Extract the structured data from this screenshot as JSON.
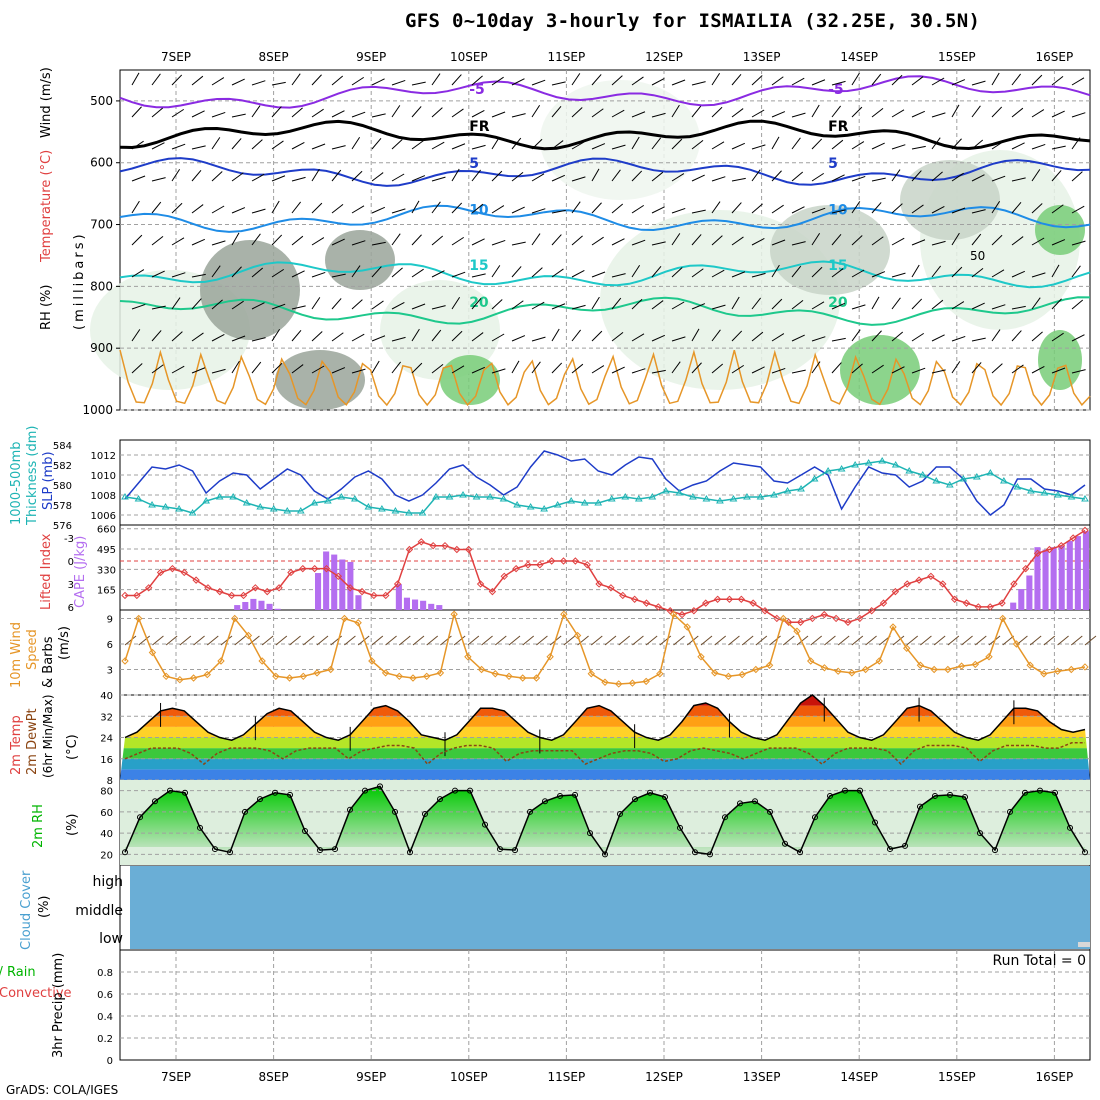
{
  "title": "GFS 0~10day 3-hourly for ISMAILIA (32.25E, 30.5N)",
  "footer": "GrADS: COLA/IGES",
  "chart_data": [
    {
      "type": "line",
      "name": "upper_air",
      "x_axis": [
        "7SEP",
        "8SEP",
        "9SEP",
        "10SEP",
        "11SEP",
        "12SEP",
        "13SEP",
        "14SEP",
        "15SEP",
        "16SEP"
      ],
      "ylabel_lines": [
        "RH (%)",
        "Temperature (°C)",
        "Wind (m/s)",
        "(millibars)"
      ],
      "ylabel_parts": {
        "rh": "RH (%)",
        "temp": "Temperature (°C)",
        "wind": "Wind (m/s)",
        "mb": "(millibars)"
      },
      "yticks": [
        500,
        600,
        700,
        800,
        900,
        1000
      ],
      "ylim": [
        450,
        1000
      ],
      "isotherms": [
        {
          "label": "-5",
          "color": "#8a2be2",
          "pressure": 495
        },
        {
          "label": "FR",
          "color": "#000000",
          "pressure": 555
        },
        {
          "label": "5",
          "color": "#1e3cc8",
          "pressure": 615
        },
        {
          "label": "10",
          "color": "#1e8ce6",
          "pressure": 690
        },
        {
          "label": "15",
          "color": "#1ec8c8",
          "pressure": 780
        },
        {
          "label": "20",
          "color": "#1ec88c",
          "pressure": 840
        }
      ],
      "rh_label": "50"
    },
    {
      "type": "line",
      "name": "thickness_slp",
      "ylabel_left": [
        "1000-500mb",
        "Thickness (dm)"
      ],
      "ylabel_right": "SLP (mb)",
      "thickness_ticks": [
        576,
        578,
        580,
        582,
        584
      ],
      "slp_ticks": [
        1006,
        1008,
        1010,
        1012
      ],
      "series": [
        {
          "name": "SLP (mb)",
          "color": "#1e3cc8",
          "values": [
            1007.6,
            1009.2,
            1010.8,
            1010.6,
            1011.0,
            1010.4,
            1008.2,
            1009.4,
            1010.2,
            1010.0,
            1008.6,
            1009.6,
            1010.6,
            1010.0,
            1008.4,
            1007.6,
            1008.6,
            1009.8,
            1010.4,
            1009.6,
            1008.0,
            1007.4,
            1008.0,
            1009.2,
            1010.6,
            1011.0,
            1009.8,
            1009.0,
            1008.0,
            1008.8,
            1010.8,
            1012.4,
            1012.0,
            1011.4,
            1011.6,
            1010.4,
            1010.0,
            1011.0,
            1011.8,
            1011.6,
            1009.6,
            1008.4,
            1009.0,
            1009.4,
            1010.4,
            1011.2,
            1011.0,
            1010.8,
            1009.4,
            1009.2,
            1010.0,
            1010.8,
            1010.0,
            1006.6,
            1008.8,
            1010.8,
            1010.2,
            1010.0,
            1008.8,
            1009.4,
            1010.8,
            1010.8,
            1009.6,
            1007.4,
            1006.0,
            1007.0,
            1009.6,
            1009.6,
            1008.6,
            1008.4,
            1008.0,
            1009.0
          ]
        },
        {
          "name": "1000-500mb Thickness (dm)",
          "color": "#1eb4b4",
          "values": [
            578.8,
            578.6,
            578.0,
            577.8,
            577.6,
            577.2,
            578.4,
            578.8,
            578.8,
            578.2,
            577.8,
            577.6,
            577.4,
            577.4,
            578.2,
            578.4,
            578.8,
            578.6,
            577.8,
            577.6,
            577.4,
            577.2,
            577.2,
            578.8,
            578.8,
            579.0,
            578.8,
            578.8,
            578.6,
            578.0,
            577.8,
            577.6,
            578.0,
            578.4,
            578.2,
            578.2,
            578.6,
            578.8,
            578.6,
            578.8,
            579.4,
            579.2,
            578.8,
            578.6,
            578.4,
            578.6,
            578.8,
            578.8,
            579.0,
            579.4,
            579.6,
            580.6,
            581.4,
            581.6,
            582.0,
            582.2,
            582.4,
            582.0,
            581.4,
            581.0,
            580.4,
            580.0,
            580.6,
            580.8,
            581.2,
            580.4,
            579.8,
            579.4,
            579.2,
            579.0,
            578.8,
            578.6
          ]
        }
      ]
    },
    {
      "type": "bar",
      "name": "li_cape",
      "ylabel_left": "Lifted Index",
      "ylabel_right": "CAPE (J/kg)",
      "li_ticks": [
        -3,
        0,
        3,
        6
      ],
      "cape_ticks": [
        165,
        330,
        495,
        660
      ],
      "series": [
        {
          "name": "CAPE (J/kg)",
          "color": "#b46ef0",
          "values": [
            0,
            0,
            0,
            0,
            0,
            0,
            0,
            0,
            0,
            0,
            0,
            0,
            0,
            0,
            40,
            65,
            90,
            75,
            50,
            10,
            0,
            0,
            0,
            0,
            300,
            475,
            450,
            410,
            390,
            120,
            0,
            0,
            0,
            0,
            210,
            100,
            85,
            75,
            50,
            40,
            0,
            0,
            0,
            0,
            0,
            0,
            0,
            0,
            0,
            0,
            0,
            0,
            0,
            0,
            0,
            0,
            0,
            0,
            0,
            0,
            0,
            0,
            0,
            0,
            0,
            0,
            0,
            0,
            0,
            0,
            0,
            0,
            0,
            0,
            0,
            0,
            0,
            0,
            0,
            0,
            0,
            0,
            0,
            0,
            0,
            0,
            0,
            0,
            0,
            0,
            0,
            0,
            0,
            0,
            0,
            0,
            0,
            0,
            0,
            0,
            0,
            0,
            0,
            0,
            0,
            0,
            0,
            0,
            0,
            0,
            60,
            170,
            280,
            510,
            490,
            510,
            520,
            560,
            600,
            640
          ]
        },
        {
          "name": "Lifted Index",
          "color": "#e04040",
          "values": [
            4.5,
            4.5,
            3.5,
            1.5,
            1.0,
            1.5,
            2.5,
            3.5,
            4.0,
            4.5,
            4.5,
            3.5,
            4.0,
            3.5,
            1.5,
            1.0,
            1.0,
            1.0,
            2.0,
            3.5,
            4.0,
            4.5,
            4.5,
            3.0,
            -1.5,
            -2.5,
            -2.0,
            -2.0,
            -1.5,
            -1.5,
            3.0,
            4.0,
            2.0,
            1.0,
            0.5,
            0.5,
            0.0,
            0.0,
            0.0,
            0.5,
            3.0,
            3.5,
            4.5,
            5.0,
            5.5,
            6.0,
            6.5,
            7.0,
            6.5,
            5.5,
            5.0,
            5.0,
            5.0,
            5.5,
            6.5,
            7.5,
            8.0,
            8.0,
            7.5,
            7.0,
            7.5,
            8.0,
            7.5,
            6.5,
            5.5,
            4.0,
            3.0,
            2.5,
            2.0,
            3.0,
            5.0,
            5.5,
            6.0,
            6.0,
            5.5,
            3.0,
            1.0,
            -1.0,
            -1.5,
            -2.0,
            -3.0,
            -4.0
          ]
        }
      ]
    },
    {
      "type": "line",
      "name": "wind10m",
      "ylabel": [
        "10m Wind",
        "Speed",
        "& Barbs"
      ],
      "ylabel_unit": "(m/s)",
      "yticks": [
        3,
        6,
        9
      ],
      "ylim": [
        0,
        10
      ],
      "series": [
        {
          "name": "10m Wind Speed (m/s)",
          "color": "#e69628",
          "values": [
            4.0,
            9.0,
            5.0,
            2.2,
            1.8,
            2.0,
            2.4,
            4.0,
            9.0,
            7.0,
            4.0,
            2.2,
            2.0,
            2.2,
            2.6,
            3.0,
            9.0,
            8.5,
            4.0,
            2.6,
            2.2,
            2.0,
            2.2,
            2.6,
            9.5,
            4.5,
            3.0,
            2.5,
            2.2,
            2.0,
            2.0,
            4.5,
            9.5,
            7.0,
            2.5,
            1.5,
            1.3,
            1.4,
            1.6,
            2.5,
            9.5,
            8.0,
            4.5,
            2.6,
            2.2,
            2.4,
            3.0,
            3.5,
            9.0,
            7.5,
            4.0,
            3.2,
            2.8,
            2.6,
            3.0,
            4.0,
            8.0,
            5.5,
            3.5,
            3.0,
            3.0,
            3.4,
            3.6,
            4.5,
            9.0,
            6.0,
            3.5,
            2.5,
            2.8,
            3.0,
            3.3
          ]
        }
      ]
    },
    {
      "type": "area",
      "name": "temp2m",
      "ylabel": [
        "2m Temp",
        "2m DewPt",
        "(6hr Min/Max)"
      ],
      "ylabel_unit": "(°C)",
      "yticks": [
        8,
        16,
        24,
        32,
        40
      ],
      "ylim": [
        8,
        40
      ],
      "series": [
        {
          "name": "2m Temp (°C)",
          "color": "#000000",
          "values": [
            24,
            26,
            30,
            34,
            35,
            34,
            30,
            26,
            24,
            23,
            25,
            29,
            33,
            35,
            34,
            30,
            26,
            24,
            23,
            25,
            30,
            35,
            36,
            34,
            30,
            25,
            24,
            23,
            25,
            30,
            35,
            35,
            34,
            30,
            26,
            24,
            23,
            25,
            30,
            35,
            36,
            34,
            30,
            26,
            24,
            23,
            25,
            30,
            36,
            37,
            35,
            30,
            26,
            24,
            23,
            25,
            31,
            37,
            40,
            36,
            31,
            26,
            24,
            23,
            25,
            30,
            35,
            36,
            34,
            30,
            26,
            24,
            23,
            25,
            30,
            35,
            35,
            34,
            30,
            27,
            26,
            27
          ]
        },
        {
          "name": "2m DewPt (°C)",
          "color": "#8b4513",
          "values": [
            16,
            18,
            20,
            20,
            20,
            18,
            14,
            18,
            20,
            20,
            20,
            19,
            16,
            19,
            20,
            20,
            20,
            16,
            19,
            20,
            21,
            21,
            20,
            14,
            18,
            20,
            21,
            21,
            20,
            15,
            18,
            19,
            19,
            19,
            19,
            14,
            16,
            18,
            19,
            19,
            18,
            15,
            16,
            19,
            20,
            19,
            18,
            16,
            18,
            20,
            20,
            20,
            18,
            14,
            18,
            20,
            20,
            20,
            19,
            14,
            19,
            21,
            21,
            21,
            20,
            15,
            19,
            21,
            21,
            21,
            20,
            20,
            22,
            22
          ]
        }
      ]
    },
    {
      "type": "area",
      "name": "rh2m",
      "ylabel": "2m RH",
      "ylabel_unit": "(%)",
      "yticks": [
        20,
        40,
        60,
        80
      ],
      "ylim": [
        10,
        90
      ],
      "series": [
        {
          "name": "2m RH (%)",
          "color": "#00c800",
          "values": [
            22,
            55,
            70,
            80,
            78,
            45,
            25,
            22,
            60,
            72,
            78,
            76,
            42,
            24,
            25,
            62,
            80,
            84,
            60,
            22,
            58,
            72,
            80,
            80,
            48,
            25,
            24,
            60,
            70,
            75,
            76,
            40,
            20,
            58,
            72,
            78,
            74,
            45,
            22,
            20,
            55,
            68,
            70,
            60,
            30,
            22,
            55,
            75,
            80,
            80,
            50,
            25,
            28,
            65,
            75,
            76,
            74,
            40,
            24,
            60,
            78,
            80,
            78,
            45,
            22
          ]
        }
      ]
    },
    {
      "type": "heatmap",
      "name": "cloud_cover",
      "ylabel": "Cloud Cover",
      "ylabel_unit": "(%)",
      "levels": [
        "high",
        "middle",
        "low"
      ],
      "color": "#6aaed6",
      "values": [
        0,
        0,
        0
      ]
    },
    {
      "type": "bar",
      "name": "precip",
      "ylabel_left": [
        "Total / Rain",
        "Convective"
      ],
      "ylabel_main": "3hr Precip (mm)",
      "yticks": [
        "0",
        "0.2",
        "0.4",
        "0.6",
        "0.8"
      ],
      "ylim": [
        0,
        1
      ],
      "run_total": "Run Total = 0",
      "values": []
    }
  ]
}
